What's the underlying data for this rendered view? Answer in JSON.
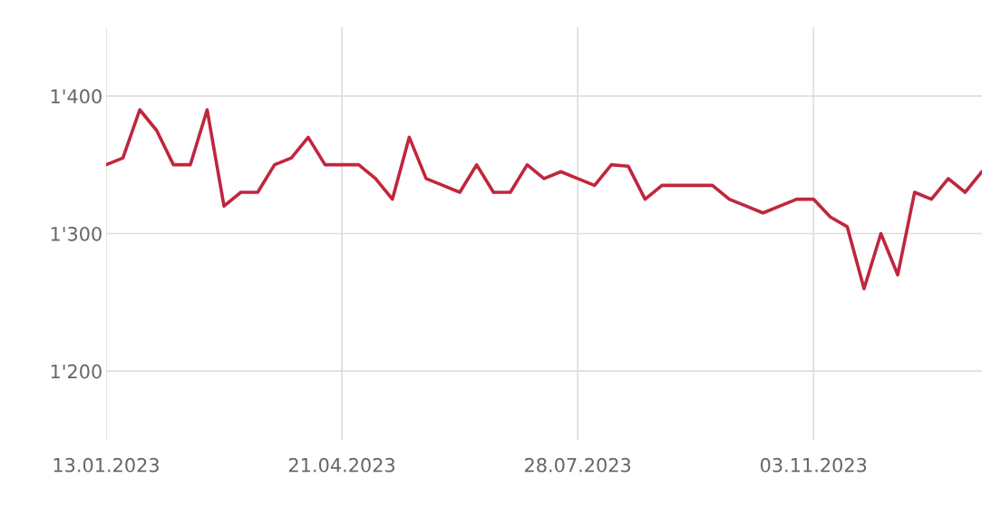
{
  "chart_data": {
    "type": "line",
    "x": [
      "2023-01-13",
      "2023-01-20",
      "2023-01-27",
      "2023-02-03",
      "2023-02-10",
      "2023-02-17",
      "2023-02-24",
      "2023-03-03",
      "2023-03-10",
      "2023-03-17",
      "2023-03-24",
      "2023-03-31",
      "2023-04-07",
      "2023-04-14",
      "2023-04-21",
      "2023-04-28",
      "2023-05-05",
      "2023-05-12",
      "2023-05-19",
      "2023-05-26",
      "2023-06-02",
      "2023-06-09",
      "2023-06-16",
      "2023-06-23",
      "2023-06-30",
      "2023-07-07",
      "2023-07-14",
      "2023-07-21",
      "2023-07-28",
      "2023-08-04",
      "2023-08-11",
      "2023-08-18",
      "2023-08-25",
      "2023-09-01",
      "2023-09-08",
      "2023-09-15",
      "2023-09-22",
      "2023-09-29",
      "2023-10-06",
      "2023-10-13",
      "2023-10-20",
      "2023-10-27",
      "2023-11-03",
      "2023-11-10",
      "2023-11-17",
      "2023-11-24",
      "2023-12-01",
      "2023-12-08",
      "2023-12-15",
      "2023-12-22",
      "2023-12-29",
      "2024-01-05",
      "2024-01-12"
    ],
    "series": [
      {
        "color": "#c0263e",
        "values": [
          1350,
          1355,
          1390,
          1375,
          1350,
          1350,
          1390,
          1320,
          1330,
          1330,
          1350,
          1355,
          1370,
          1350,
          1350,
          1350,
          1340,
          1325,
          1370,
          1340,
          1335,
          1330,
          1350,
          1330,
          1330,
          1350,
          1340,
          1345,
          1340,
          1335,
          1350,
          1349,
          1325,
          1335,
          1335,
          1335,
          1335,
          1325,
          1320,
          1315,
          1320,
          1325,
          1325,
          1312,
          1305,
          1260,
          1300,
          1270,
          1330,
          1325,
          1340,
          1330,
          1345
        ]
      }
    ],
    "xlim": [
      "2023-01-13",
      "2024-01-12"
    ],
    "xticks": [
      {
        "value": "2023-01-13",
        "label": "13.01.2023"
      },
      {
        "value": "2023-04-21",
        "label": "21.04.2023"
      },
      {
        "value": "2023-07-28",
        "label": "28.07.2023"
      },
      {
        "value": "2023-11-03",
        "label": "03.11.2023"
      }
    ],
    "ylim": [
      1150,
      1450
    ],
    "yticks": [
      {
        "value": 1200,
        "label": "1'200"
      },
      {
        "value": 1300,
        "label": "1'300"
      },
      {
        "value": 1400,
        "label": "1'400"
      }
    ],
    "grid": true,
    "line_style": "solid"
  }
}
